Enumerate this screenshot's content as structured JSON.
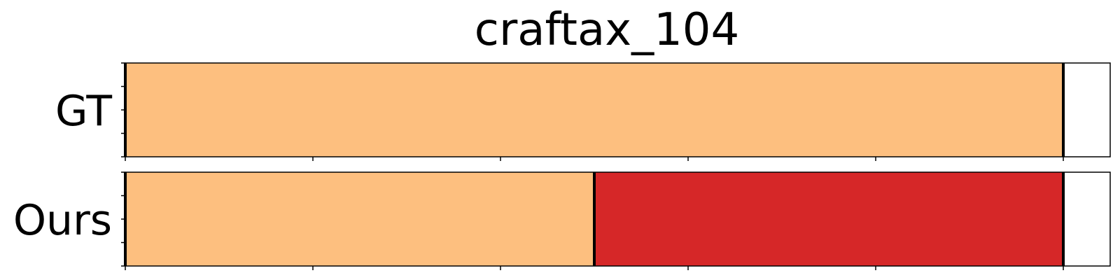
{
  "chart_data": {
    "type": "segment-timeline",
    "title": "craftax_104",
    "xlim": [
      0,
      5.25
    ],
    "x_ticks": [
      0,
      1,
      2,
      3,
      4,
      5
    ],
    "y_ticks_per_row": 5,
    "rows": [
      {
        "label": "GT",
        "segments": [
          {
            "start": 0,
            "end": 5,
            "color": "#fdbf7f"
          }
        ],
        "boundaries": [
          0,
          5
        ]
      },
      {
        "label": "Ours",
        "segments": [
          {
            "start": 0,
            "end": 2.5,
            "color": "#fdbf7f"
          },
          {
            "start": 2.5,
            "end": 5,
            "color": "#d62728"
          }
        ],
        "boundaries": [
          0,
          2.5,
          5
        ]
      }
    ],
    "grid": false,
    "legend": "none"
  }
}
